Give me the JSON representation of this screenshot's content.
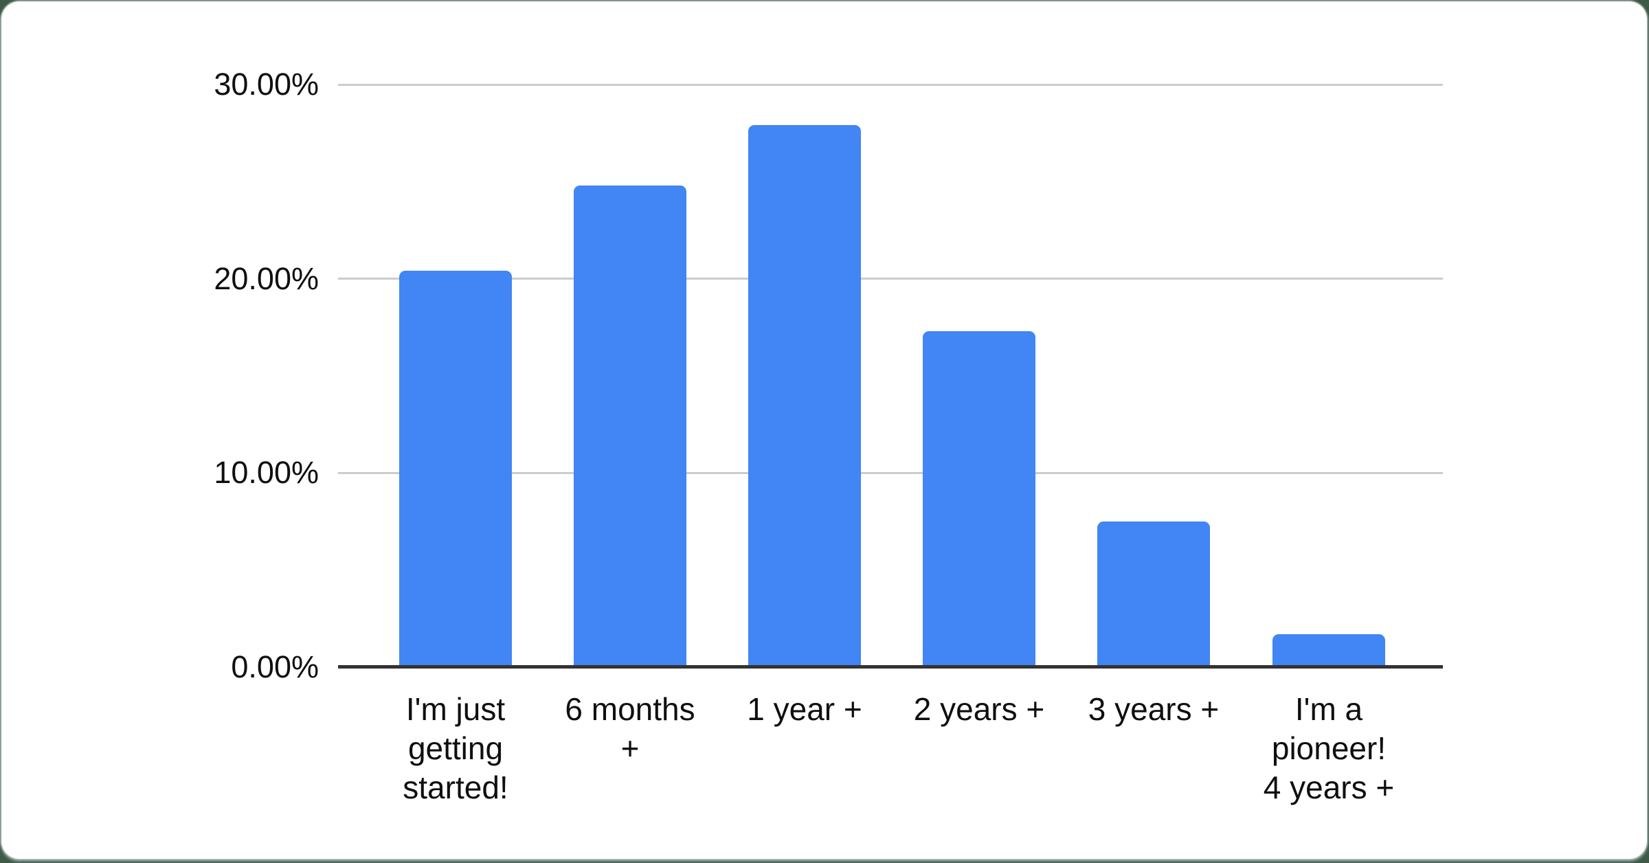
{
  "page": {
    "background_color": "#3d5a47",
    "card_color": "#ffffff"
  },
  "chart_data": {
    "type": "bar",
    "title": "",
    "xlabel": "",
    "ylabel": "",
    "categories": [
      "I'm just getting started!",
      "6 months +",
      "1 year +",
      "2 years +",
      "3 years +",
      "I'm a pioneer! 4 years +"
    ],
    "category_display_lines": [
      "I'm just\ngetting\nstarted!",
      "6 months\n+",
      "1 year +",
      "2 years +",
      "3 years +",
      "I'm a\npioneer!\n4 years +"
    ],
    "values": [
      20.4,
      24.8,
      27.9,
      17.3,
      7.5,
      1.7
    ],
    "value_unit": "%",
    "ylim": [
      0,
      30
    ],
    "yticks": [
      {
        "value": 30,
        "label": "30.00%"
      },
      {
        "value": 20,
        "label": "20.00%"
      },
      {
        "value": 10,
        "label": "10.00%"
      },
      {
        "value": 0,
        "label": "0.00%"
      }
    ],
    "grid": true,
    "legend": "none",
    "colors": {
      "bar": "#4285F4",
      "gridline": "#cccccc",
      "baseline": "#333333",
      "label": "#0f0f0f"
    }
  }
}
